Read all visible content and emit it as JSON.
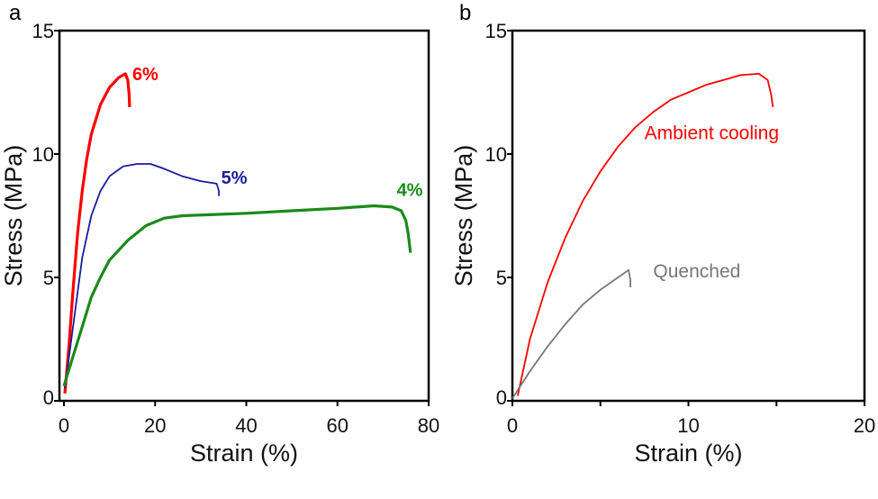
{
  "chart_data": [
    {
      "type": "line",
      "panel_label": "a",
      "xlabel": "Strain (%)",
      "ylabel": "Stress (MPa)",
      "xlim": [
        0,
        80
      ],
      "ylim": [
        0,
        15
      ],
      "xticks": [
        "0",
        "20",
        "40",
        "60",
        "80"
      ],
      "yticks": [
        "0",
        "5",
        "10",
        "15"
      ],
      "grid": false,
      "series": [
        {
          "name": "6%",
          "color": "#ff0000",
          "x": [
            0.2,
            1,
            2,
            3,
            4,
            5,
            6,
            8,
            10,
            12,
            13.5,
            14,
            14.3,
            14.4
          ],
          "y": [
            0.3,
            2,
            4.5,
            6.8,
            8.5,
            9.8,
            10.8,
            12,
            12.7,
            13.1,
            13.25,
            13.0,
            12.4,
            11.9
          ]
        },
        {
          "name": "5%",
          "color": "#1a1aa0",
          "x": [
            0.2,
            2,
            4,
            6,
            8,
            10,
            13,
            16,
            19,
            22,
            26,
            30,
            33.5,
            34,
            34
          ],
          "y": [
            0.5,
            3,
            5.8,
            7.5,
            8.5,
            9.1,
            9.5,
            9.6,
            9.6,
            9.4,
            9.1,
            8.9,
            8.8,
            8.5,
            8.3
          ]
        },
        {
          "name": "4%",
          "color": "#1a8a1a",
          "x": [
            0,
            2,
            4,
            6,
            8,
            10,
            14,
            18,
            22,
            26,
            40,
            50,
            60,
            68,
            72,
            74,
            75,
            75.5,
            76
          ],
          "y": [
            0.6,
            1.8,
            3,
            4.2,
            5,
            5.7,
            6.5,
            7.1,
            7.4,
            7.5,
            7.6,
            7.7,
            7.8,
            7.9,
            7.85,
            7.7,
            7.3,
            6.8,
            6.0
          ]
        }
      ]
    },
    {
      "type": "line",
      "panel_label": "b",
      "xlabel": "Strain (%)",
      "ylabel": "Stress (MPa)",
      "xlim": [
        0,
        20
      ],
      "ylim": [
        0,
        15
      ],
      "xticks": [
        "0",
        "10",
        "20"
      ],
      "yticks": [
        "0",
        "5",
        "10",
        "15"
      ],
      "grid": false,
      "series": [
        {
          "name": "Ambient cooling",
          "color": "#ff0000",
          "x": [
            0.3,
            1,
            2,
            3,
            4,
            5,
            6,
            7,
            8,
            9,
            10,
            11,
            12,
            13,
            14,
            14.5,
            14.7,
            14.8
          ],
          "y": [
            0.2,
            2.5,
            4.8,
            6.6,
            8.1,
            9.3,
            10.3,
            11.1,
            11.7,
            12.2,
            12.5,
            12.8,
            13.0,
            13.2,
            13.25,
            13.0,
            12.4,
            11.9
          ]
        },
        {
          "name": "Quenched",
          "color": "#777777",
          "x": [
            0,
            1,
            2,
            3,
            4,
            5,
            6,
            6.6,
            6.7,
            6.7
          ],
          "y": [
            0.1,
            1.2,
            2.2,
            3.1,
            3.9,
            4.5,
            5.0,
            5.3,
            4.9,
            4.6
          ]
        }
      ]
    }
  ]
}
